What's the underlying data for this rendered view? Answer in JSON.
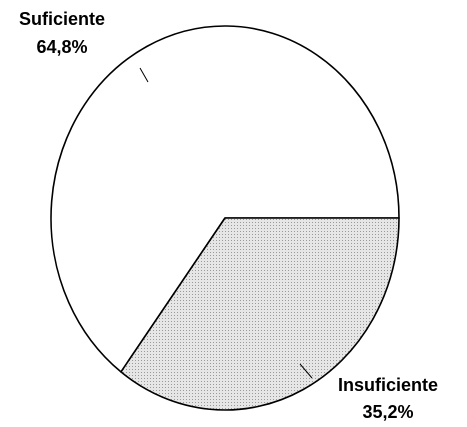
{
  "chart_data": {
    "type": "pie",
    "categories": [
      "Suficiente",
      "Insuficiente"
    ],
    "values": [
      64.8,
      35.2
    ],
    "value_labels": [
      "64,8%",
      "35,2%"
    ],
    "colors": [
      "#ffffff",
      "#d9d9d9"
    ]
  }
}
